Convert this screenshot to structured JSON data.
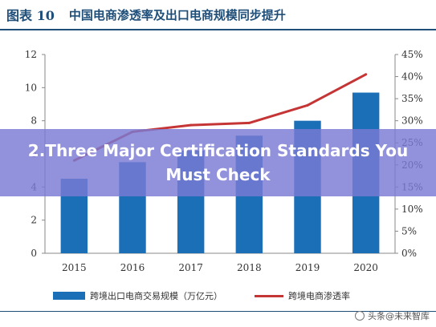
{
  "header": {
    "figure_label": "图表 10",
    "title": "中国电商渗透率及出口电商规模同步提升"
  },
  "overlay": {
    "text": "2.Three Major Certification Standards You Must Check"
  },
  "watermark": {
    "text": "头条@未来智库",
    "icon": "logo-icon"
  },
  "colors": {
    "bar": "#1a6fb7",
    "line": "#c63535",
    "overlay": "#7a7ad4",
    "header": "#1f4e79"
  },
  "chart_data": {
    "type": "bar",
    "categories": [
      "2015",
      "2016",
      "2017",
      "2018",
      "2019",
      "2020"
    ],
    "series": [
      {
        "name": "跨境出口电商交易规模（万亿元）",
        "type": "bar",
        "axis": "left",
        "values": [
          4.5,
          5.5,
          6.2,
          7.1,
          8.0,
          9.7
        ]
      },
      {
        "name": "跨境电商渗透率",
        "type": "line",
        "axis": "right",
        "values": [
          0.21,
          0.275,
          0.29,
          0.295,
          0.335,
          0.405
        ]
      }
    ],
    "y_left": {
      "ylim": [
        0,
        12
      ],
      "ticks": [
        "0",
        "2",
        "4",
        "6",
        "8",
        "10",
        "12"
      ]
    },
    "y_right": {
      "ylim": [
        0,
        0.45
      ],
      "ticks": [
        "0%",
        "5%",
        "10%",
        "15%",
        "20%",
        "25%",
        "30%",
        "35%",
        "40%",
        "45%"
      ]
    },
    "grid": false,
    "legend": "bottom"
  }
}
